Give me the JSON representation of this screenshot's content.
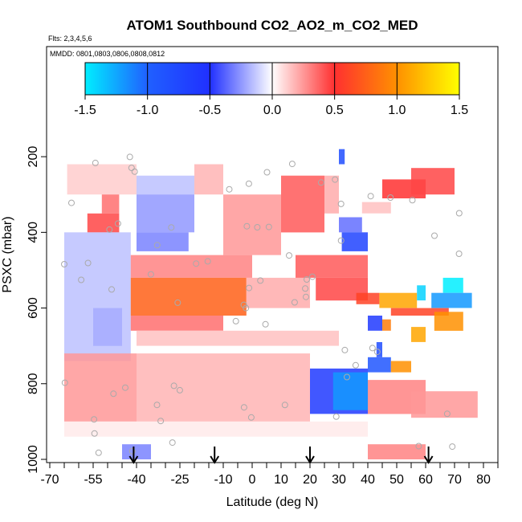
{
  "chart_data": {
    "type": "heatmap",
    "title": "ATOM1 Southbound CO2_AO2_m_CO2_MED",
    "flights_label": "Flts: 2,3,4,5,6",
    "dates_label": "MMDD: 0801,0803,0806,0808,0812",
    "xlabel": "Latitude (deg N)",
    "ylabel": "PSXC (mbar)",
    "xlim": [
      -70,
      85
    ],
    "ylim": [
      1000,
      0
    ],
    "x_ticks": [
      -70,
      -55,
      -40,
      -25,
      -10,
      0,
      10,
      20,
      30,
      40,
      50,
      60,
      70,
      80
    ],
    "x_tick_labels": [
      "-70",
      "-55",
      "-40",
      "-25",
      "-10",
      "0",
      "10",
      "20",
      "30",
      "40",
      "50",
      "60",
      "70",
      "80"
    ],
    "y_ticks": [
      200,
      400,
      600,
      800,
      1000
    ],
    "y_tick_labels": [
      "200",
      "400",
      "600",
      "800",
      "1000"
    ],
    "colorbar": {
      "range": [
        -1.5,
        1.5
      ],
      "ticks": [
        -1.5,
        -1.0,
        -0.5,
        0.0,
        0.5,
        1.0,
        1.5
      ],
      "tick_labels": [
        "-1.5",
        "-1.0",
        "-0.5",
        "0.0",
        "0.5",
        "1.0",
        "1.5"
      ],
      "colors": [
        "#00eeff",
        "#2060ff",
        "#2030ff",
        "#ffffff",
        "#ff3030",
        "#ff9000",
        "#ffff00"
      ]
    },
    "cells": [
      {
        "lat": [
          -64,
          -40
        ],
        "p": [
          220,
          300
        ],
        "v": 0.12
      },
      {
        "lat": [
          -52,
          -46
        ],
        "p": [
          300,
          350
        ],
        "v": 0.35
      },
      {
        "lat": [
          -57,
          -46
        ],
        "p": [
          350,
          400
        ],
        "v": 0.45
      },
      {
        "lat": [
          -40,
          -20
        ],
        "p": [
          250,
          300
        ],
        "v": -0.15
      },
      {
        "lat": [
          -40,
          -20
        ],
        "p": [
          300,
          400
        ],
        "v": -0.25
      },
      {
        "lat": [
          -40,
          -22
        ],
        "p": [
          400,
          450
        ],
        "v": -0.3
      },
      {
        "lat": [
          -20,
          -10
        ],
        "p": [
          220,
          300
        ],
        "v": 0.18
      },
      {
        "lat": [
          -10,
          10
        ],
        "p": [
          300,
          460
        ],
        "v": 0.25
      },
      {
        "lat": [
          10,
          25
        ],
        "p": [
          250,
          400
        ],
        "v": 0.4
      },
      {
        "lat": [
          25,
          30
        ],
        "p": [
          250,
          350
        ],
        "v": 0.2
      },
      {
        "lat": [
          30,
          38
        ],
        "p": [
          360,
          400
        ],
        "v": -0.35
      },
      {
        "lat": [
          31,
          40
        ],
        "p": [
          400,
          450
        ],
        "v": -0.7
      },
      {
        "lat": [
          38,
          48
        ],
        "p": [
          320,
          350
        ],
        "v": 0.15
      },
      {
        "lat": [
          30,
          32
        ],
        "p": [
          180,
          220
        ],
        "v": -0.8
      },
      {
        "lat": [
          45,
          60
        ],
        "p": [
          260,
          310
        ],
        "v": 0.5
      },
      {
        "lat": [
          55,
          70
        ],
        "p": [
          230,
          300
        ],
        "v": 0.45
      },
      {
        "lat": [
          -65,
          -42
        ],
        "p": [
          400,
          740
        ],
        "v": -0.15
      },
      {
        "lat": [
          -42,
          0
        ],
        "p": [
          460,
          520
        ],
        "v": 0.3
      },
      {
        "lat": [
          -42,
          -2
        ],
        "p": [
          520,
          620
        ],
        "v": 0.75
      },
      {
        "lat": [
          -42,
          -10
        ],
        "p": [
          620,
          660
        ],
        "v": 0.35
      },
      {
        "lat": [
          -2,
          20
        ],
        "p": [
          520,
          600
        ],
        "v": 0.2
      },
      {
        "lat": [
          -40,
          30
        ],
        "p": [
          660,
          700
        ],
        "v": 0.15
      },
      {
        "lat": [
          15,
          40
        ],
        "p": [
          460,
          520
        ],
        "v": 0.4
      },
      {
        "lat": [
          22,
          40
        ],
        "p": [
          520,
          580
        ],
        "v": 0.45
      },
      {
        "lat": [
          36,
          44
        ],
        "p": [
          560,
          590
        ],
        "v": 0.6
      },
      {
        "lat": [
          44,
          57
        ],
        "p": [
          560,
          600
        ],
        "v": 1.1
      },
      {
        "lat": [
          48,
          68
        ],
        "p": [
          600,
          620
        ],
        "v": 0.6
      },
      {
        "lat": [
          40,
          45
        ],
        "p": [
          620,
          660
        ],
        "v": -0.6
      },
      {
        "lat": [
          45,
          48
        ],
        "p": [
          630,
          660
        ],
        "v": 0.9
      },
      {
        "lat": [
          63,
          73
        ],
        "p": [
          610,
          660
        ],
        "v": 1.0
      },
      {
        "lat": [
          55,
          60
        ],
        "p": [
          650,
          690
        ],
        "v": 1.1
      },
      {
        "lat": [
          43,
          45
        ],
        "p": [
          690,
          730
        ],
        "v": -0.8
      },
      {
        "lat": [
          40,
          48
        ],
        "p": [
          730,
          770
        ],
        "v": -0.9
      },
      {
        "lat": [
          48,
          55
        ],
        "p": [
          740,
          770
        ],
        "v": 1.0
      },
      {
        "lat": [
          20,
          40
        ],
        "p": [
          760,
          880
        ],
        "v": -0.6
      },
      {
        "lat": [
          28,
          40
        ],
        "p": [
          770,
          870
        ],
        "v": -1.2
      },
      {
        "lat": [
          40,
          60
        ],
        "p": [
          790,
          880
        ],
        "v": 0.3
      },
      {
        "lat": [
          55,
          78
        ],
        "p": [
          820,
          890
        ],
        "v": 0.25
      },
      {
        "lat": [
          -65,
          -40
        ],
        "p": [
          720,
          900
        ],
        "v": 0.25
      },
      {
        "lat": [
          -40,
          20
        ],
        "p": [
          720,
          900
        ],
        "v": 0.18
      },
      {
        "lat": [
          -65,
          40
        ],
        "p": [
          900,
          940
        ],
        "v": 0.05
      },
      {
        "lat": [
          -45,
          -35
        ],
        "p": [
          960,
          1000
        ],
        "v": -0.3
      },
      {
        "lat": [
          40,
          60
        ],
        "p": [
          960,
          1000
        ],
        "v": 0.3
      },
      {
        "lat": [
          66,
          73
        ],
        "p": [
          520,
          560
        ],
        "v": -1.5
      },
      {
        "lat": [
          57,
          60
        ],
        "p": [
          540,
          580
        ],
        "v": -1.4
      },
      {
        "lat": [
          62,
          76
        ],
        "p": [
          560,
          600
        ],
        "v": -1.2
      },
      {
        "lat": [
          -55,
          -45
        ],
        "p": [
          600,
          700
        ],
        "v": -0.2
      }
    ],
    "arrows_lat": [
      -41,
      -13,
      20,
      61
    ]
  }
}
